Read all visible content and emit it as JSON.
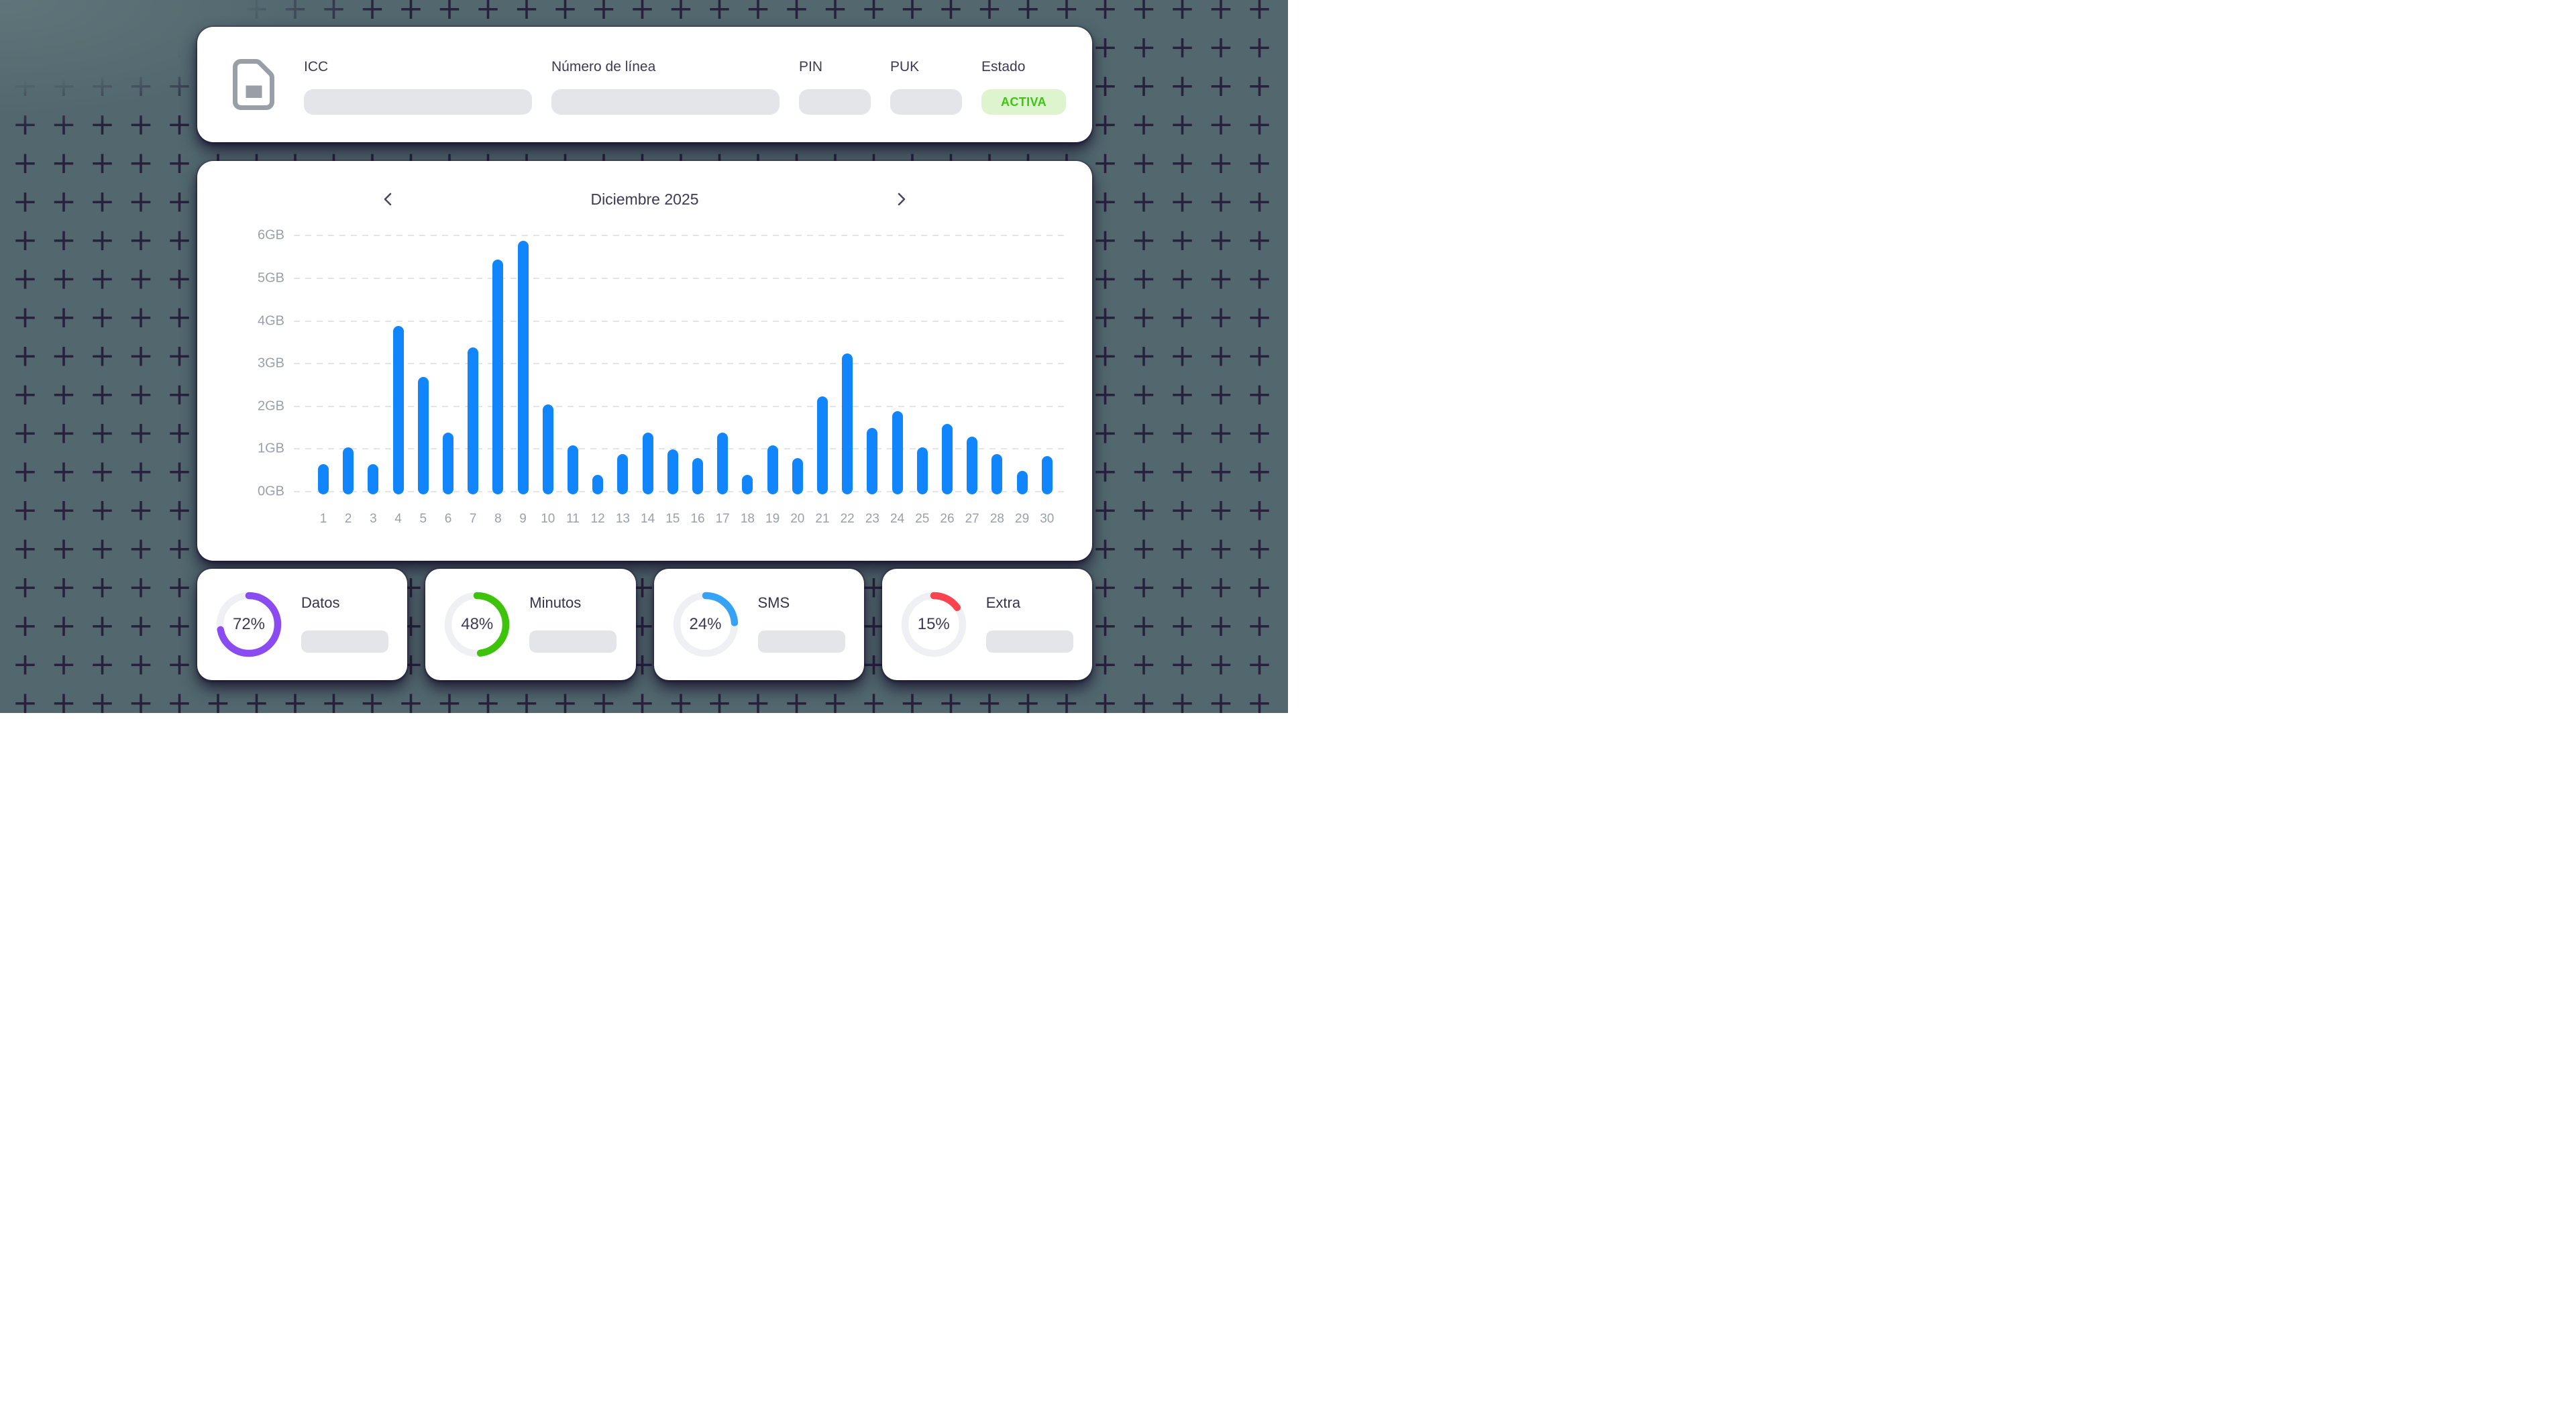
{
  "background": {
    "base_color": "#52686e",
    "plus_color": "#27213c"
  },
  "sim_card": {
    "icon": "sim-card-icon",
    "fields": [
      {
        "label": "ICC",
        "size": "long",
        "type": "skeleton"
      },
      {
        "label": "Número de línea",
        "size": "long",
        "type": "skeleton"
      },
      {
        "label": "PIN",
        "size": "short",
        "type": "skeleton"
      },
      {
        "label": "PUK",
        "size": "short",
        "type": "skeleton"
      },
      {
        "label": "Estado",
        "size": "badge",
        "type": "badge",
        "badge": "ACTIVA"
      }
    ],
    "status": {
      "label": "ACTIVA",
      "bg": "#def4cf",
      "color": "#3dc512"
    }
  },
  "chart": {
    "title": "Diciembre 2025",
    "prev_icon": "chevron-left",
    "next_icon": "chevron-right"
  },
  "chart_data": {
    "type": "bar",
    "title": "Diciembre 2025",
    "categories": [
      "1",
      "2",
      "3",
      "4",
      "5",
      "6",
      "7",
      "8",
      "9",
      "10",
      "11",
      "12",
      "13",
      "14",
      "15",
      "16",
      "17",
      "18",
      "19",
      "20",
      "21",
      "22",
      "23",
      "24",
      "25",
      "26",
      "27",
      "28",
      "29",
      "30"
    ],
    "values": [
      0.7,
      1.1,
      0.7,
      3.95,
      2.75,
      1.45,
      3.45,
      5.5,
      5.95,
      2.1,
      1.15,
      0.45,
      0.95,
      1.45,
      1.05,
      0.85,
      1.45,
      0.45,
      1.15,
      0.85,
      2.3,
      3.3,
      1.55,
      1.95,
      1.1,
      1.65,
      1.35,
      0.95,
      0.55,
      0.9
    ],
    "xlabel": "",
    "ylabel": "",
    "ylabel_ticks": [
      "0GB",
      "1GB",
      "2GB",
      "3GB",
      "4GB",
      "5GB",
      "6GB"
    ],
    "ylim": [
      0,
      6
    ],
    "grid": "dashed-horizontal",
    "bar_color": "#1186fc",
    "legend": "none"
  },
  "usage_cards": [
    {
      "label": "Datos",
      "percent": 72,
      "percent_label": "72%",
      "color": "#8a4cf0"
    },
    {
      "label": "Minutos",
      "percent": 48,
      "percent_label": "48%",
      "color": "#3ec30b"
    },
    {
      "label": "SMS",
      "percent": 24,
      "percent_label": "24%",
      "color": "#36a2f5"
    },
    {
      "label": "Extra",
      "percent": 15,
      "percent_label": "15%",
      "color": "#fb4450"
    }
  ],
  "colors": {
    "label_dark": "#3e3954",
    "axis_gray": "#9aa0a9",
    "placeholder_gray": "#e4e5e9",
    "ring_track": "#eef0f4",
    "gridline": "#e3e5e9"
  }
}
